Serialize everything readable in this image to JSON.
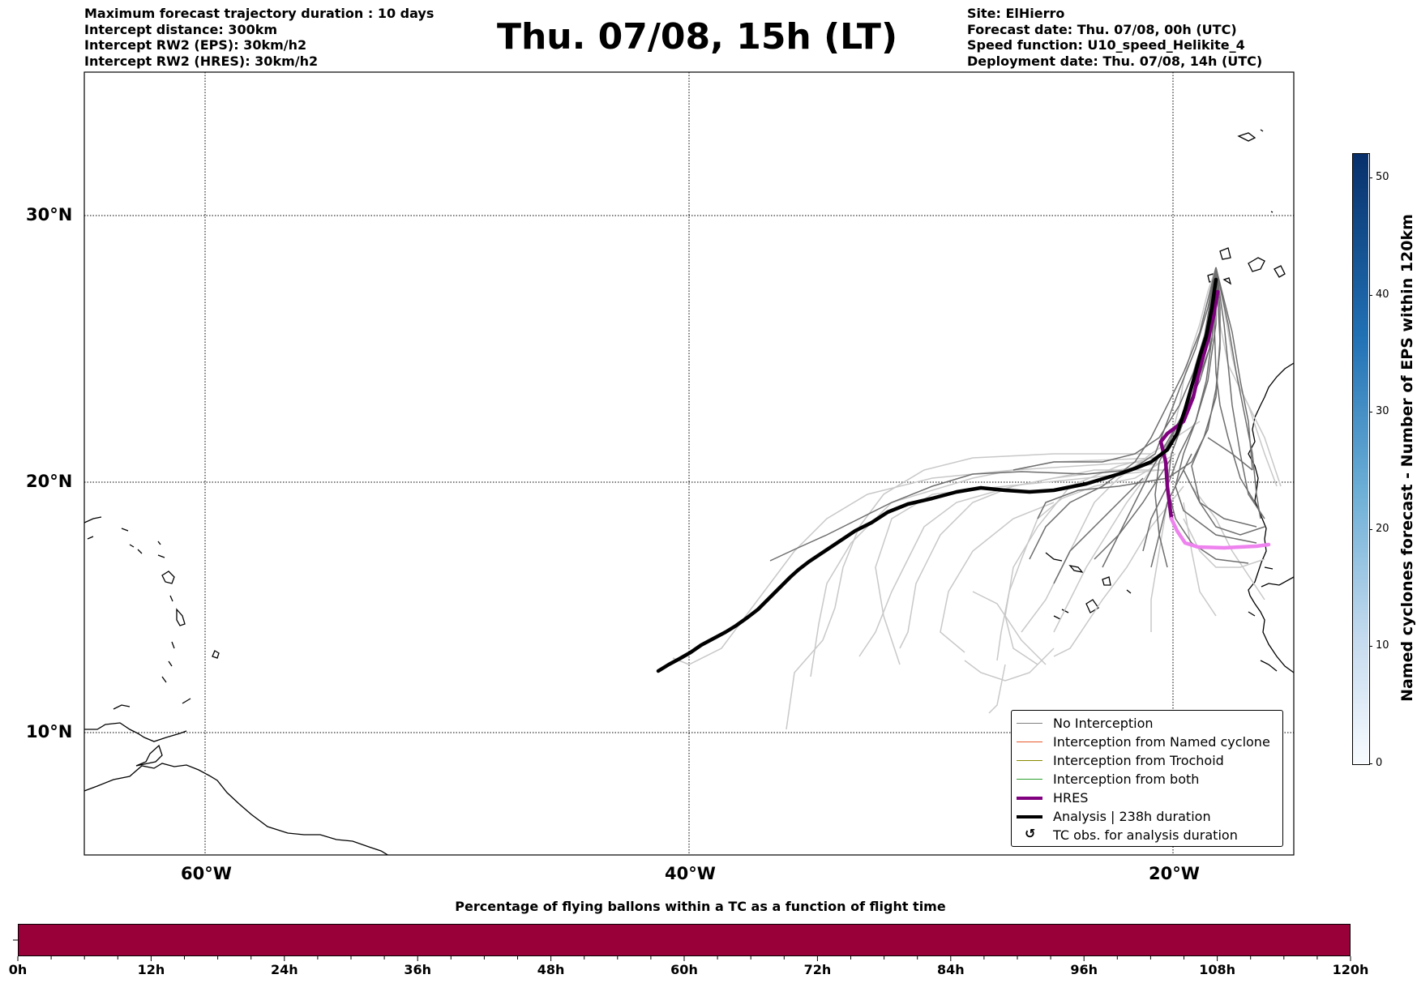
{
  "header": {
    "left_lines": [
      "Maximum forecast trajectory duration : 10 days",
      "Intercept distance: 300km",
      "Intercept RW2 (EPS):  30km/h2",
      "Intercept RW2 (HRES): 30km/h2"
    ],
    "title": "Thu. 07/08, 15h (LT)",
    "right_lines": [
      "Site: ElHierro",
      "Forecast date: Thu. 07/08, 00h (UTC)",
      "Speed function: U10_speed_Helikite_4",
      "Deployment date: Thu. 07/08, 14h (UTC)"
    ]
  },
  "map": {
    "lat_ticks": [
      "30°N",
      "20°N",
      "10°N"
    ],
    "lon_ticks": [
      "60°W",
      "40°W",
      "20°W"
    ]
  },
  "legend": {
    "items": [
      {
        "label": "No Interception",
        "color": "#808080"
      },
      {
        "label": "Interception from Named cyclone",
        "color": "#e8592b"
      },
      {
        "label": "Interception from Trochoid",
        "color": "#8a8a00"
      },
      {
        "label": "Interception from both",
        "color": "#2ca02c"
      },
      {
        "label": "HRES",
        "color": "#800080"
      },
      {
        "label": "Analysis | 238h duration",
        "color": "#000000"
      },
      {
        "label": "TC obs. for analysis duration",
        "icon": "cyclone-symbol-icon",
        "symbol": "↺"
      }
    ]
  },
  "colorbar": {
    "label": "Named cyclones forecast - Number of EPS within 120km",
    "ticks": [
      "0",
      "10",
      "20",
      "30",
      "40",
      "50"
    ],
    "max": 52,
    "colormap": "Blues"
  },
  "percentage_bar": {
    "title": "Percentage of flying ballons within a TC as a function of flight time",
    "color": "#99003a",
    "ticks": [
      "0h",
      "12h",
      "24h",
      "36h",
      "48h",
      "60h",
      "72h",
      "84h",
      "96h",
      "108h",
      "120h"
    ]
  }
}
